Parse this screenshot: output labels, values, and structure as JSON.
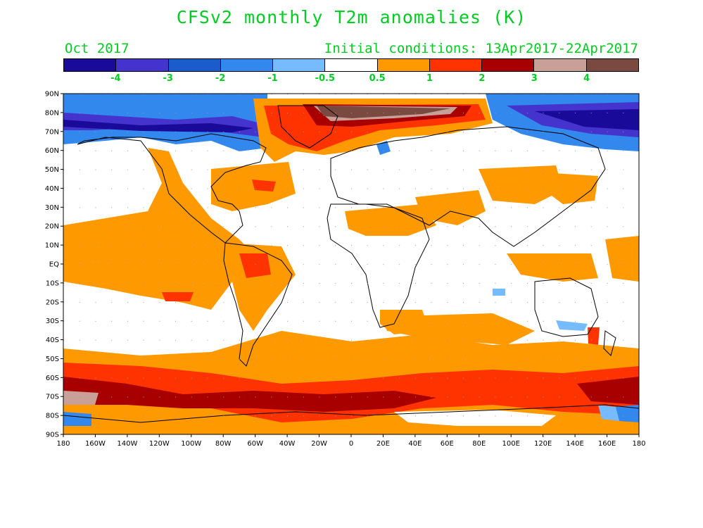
{
  "title": "CFSv2 monthly T2m anomalies (K)",
  "valid_month": "Oct 2017",
  "initial_conditions": "Initial conditions: 13Apr2017-22Apr2017",
  "colors": {
    "text_green": "#00cc22",
    "blues": [
      "#1a0a99",
      "#4433cc",
      "#1a5ccc",
      "#3388ee",
      "#77bbff"
    ],
    "neutral": "#ffffff",
    "warms": [
      "#ff9900",
      "#ff3300",
      "#a80000",
      "#c8a098",
      "#7a4a40"
    ]
  },
  "colorbar": {
    "swatches": [
      "#1a0a99",
      "#4433cc",
      "#1a5ccc",
      "#3388ee",
      "#77bbff",
      "#ffffff",
      "#ff9900",
      "#ff3300",
      "#a80000",
      "#c8a098",
      "#7a4a40"
    ],
    "labels": [
      "-4",
      "-3",
      "-2",
      "-1",
      "-0.5",
      "0.5",
      "1",
      "2",
      "3",
      "4"
    ]
  },
  "axes": {
    "lat_labels": [
      "90N",
      "80N",
      "70N",
      "60N",
      "50N",
      "40N",
      "30N",
      "20N",
      "10N",
      "EQ",
      "10S",
      "20S",
      "30S",
      "40S",
      "50S",
      "60S",
      "70S",
      "80S",
      "90S"
    ],
    "lon_labels": [
      "180",
      "160W",
      "140W",
      "120W",
      "100W",
      "80W",
      "60W",
      "40W",
      "20W",
      "0",
      "20E",
      "40E",
      "60E",
      "80E",
      "100E",
      "120E",
      "140E",
      "160E",
      "180"
    ]
  }
}
